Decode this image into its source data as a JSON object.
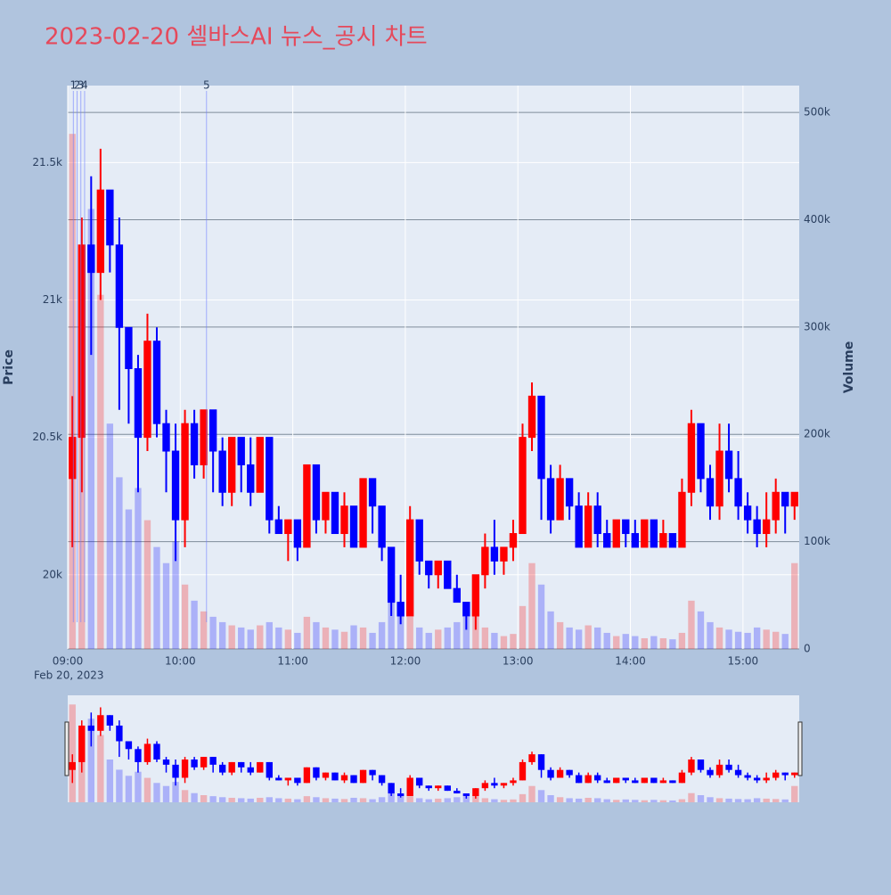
{
  "chart_data": {
    "type": "candlestick",
    "title": "2023-02-20 셀바스AI 뉴스_공시 차트",
    "y_title": "Price",
    "y2_title": "Volume",
    "x_date_label": "Feb 20, 2023",
    "increasing_color": "#ff0000",
    "decreasing_color": "#0000ff",
    "grid": true,
    "x": [
      "2023-02-20 09:00",
      "2023-02-20 09:05",
      "2023-02-20 09:10",
      "2023-02-20 09:15",
      "2023-02-20 09:20",
      "2023-02-20 09:25",
      "2023-02-20 09:30",
      "2023-02-20 09:35",
      "2023-02-20 09:40",
      "2023-02-20 09:45",
      "2023-02-20 09:50",
      "2023-02-20 09:55",
      "2023-02-20 10:00",
      "2023-02-20 10:05",
      "2023-02-20 10:10",
      "2023-02-20 10:15",
      "2023-02-20 10:20",
      "2023-02-20 10:25",
      "2023-02-20 10:30",
      "2023-02-20 10:35",
      "2023-02-20 10:40",
      "2023-02-20 10:45",
      "2023-02-20 10:50",
      "2023-02-20 10:55",
      "2023-02-20 11:00",
      "2023-02-20 11:05",
      "2023-02-20 11:10",
      "2023-02-20 11:15",
      "2023-02-20 11:20",
      "2023-02-20 11:25",
      "2023-02-20 11:30",
      "2023-02-20 11:35",
      "2023-02-20 11:40",
      "2023-02-20 11:45",
      "2023-02-20 11:50",
      "2023-02-20 11:55",
      "2023-02-20 12:00",
      "2023-02-20 12:05",
      "2023-02-20 12:10",
      "2023-02-20 12:15",
      "2023-02-20 12:20",
      "2023-02-20 12:25",
      "2023-02-20 12:30",
      "2023-02-20 12:35",
      "2023-02-20 12:40",
      "2023-02-20 12:45",
      "2023-02-20 12:50",
      "2023-02-20 12:55",
      "2023-02-20 13:00",
      "2023-02-20 13:05",
      "2023-02-20 13:10",
      "2023-02-20 13:15",
      "2023-02-20 13:20",
      "2023-02-20 13:25",
      "2023-02-20 13:30",
      "2023-02-20 13:35",
      "2023-02-20 13:40",
      "2023-02-20 13:45",
      "2023-02-20 13:50",
      "2023-02-20 13:55",
      "2023-02-20 14:00",
      "2023-02-20 14:05",
      "2023-02-20 14:10",
      "2023-02-20 14:15",
      "2023-02-20 14:20",
      "2023-02-20 14:25",
      "2023-02-20 14:30",
      "2023-02-20 14:35",
      "2023-02-20 14:40",
      "2023-02-20 14:45",
      "2023-02-20 14:50",
      "2023-02-20 14:55",
      "2023-02-20 15:00",
      "2023-02-20 15:05",
      "2023-02-20 15:10",
      "2023-02-20 15:15",
      "2023-02-20 15:20",
      "2023-02-20 15:25"
    ],
    "open": [
      20350,
      20500,
      21200,
      21100,
      21400,
      21200,
      20900,
      20750,
      20500,
      20850,
      20550,
      20450,
      20200,
      20550,
      20400,
      20600,
      20450,
      20300,
      20500,
      20400,
      20300,
      20500,
      20200,
      20150,
      20200,
      20100,
      20400,
      20200,
      20300,
      20150,
      20250,
      20100,
      20350,
      20250,
      20100,
      19900,
      19850,
      20200,
      20050,
      20000,
      20050,
      19950,
      19900,
      19850,
      20000,
      20100,
      20050,
      20100,
      20150,
      20500,
      20650,
      20350,
      20200,
      20350,
      20250,
      20100,
      20250,
      20150,
      20100,
      20200,
      20150,
      20100,
      20200,
      20100,
      20150,
      20100,
      20300,
      20550,
      20350,
      20250,
      20450,
      20350,
      20250,
      20200,
      20150,
      20200,
      20300,
      20250
    ],
    "high": [
      20650,
      21300,
      21450,
      21550,
      21400,
      21300,
      20900,
      20800,
      20950,
      20900,
      20600,
      20550,
      20600,
      20600,
      20600,
      20600,
      20500,
      20500,
      20500,
      20500,
      20500,
      20500,
      20250,
      20200,
      20200,
      20400,
      20400,
      20300,
      20300,
      20300,
      20250,
      20350,
      20350,
      20250,
      20100,
      20000,
      20250,
      20200,
      20050,
      20050,
      20050,
      20000,
      19900,
      20000,
      20150,
      20200,
      20100,
      20200,
      20550,
      20700,
      20650,
      20400,
      20400,
      20350,
      20300,
      20300,
      20300,
      20200,
      20200,
      20200,
      20200,
      20200,
      20200,
      20200,
      20150,
      20350,
      20600,
      20550,
      20400,
      20550,
      20550,
      20450,
      20300,
      20250,
      20300,
      20350,
      20300,
      20300
    ],
    "low": [
      20100,
      20300,
      20800,
      21000,
      21100,
      20600,
      20550,
      20300,
      20450,
      20500,
      20300,
      20050,
      20100,
      20350,
      20350,
      20300,
      20250,
      20250,
      20300,
      20250,
      20300,
      20150,
      20150,
      20050,
      20050,
      20100,
      20150,
      20150,
      20150,
      20100,
      20100,
      20100,
      20150,
      20050,
      19850,
      19820,
      19850,
      20000,
      19950,
      19950,
      19950,
      19900,
      19800,
      19800,
      19950,
      20000,
      20000,
      20050,
      20150,
      20450,
      20200,
      20150,
      20200,
      20200,
      20100,
      20100,
      20100,
      20100,
      20100,
      20100,
      20100,
      20100,
      20100,
      20100,
      20100,
      20100,
      20250,
      20300,
      20200,
      20200,
      20300,
      20200,
      20150,
      20100,
      20100,
      20150,
      20150,
      20200
    ],
    "close": [
      20500,
      21200,
      21100,
      21400,
      21200,
      20900,
      20750,
      20500,
      20850,
      20550,
      20450,
      20200,
      20550,
      20400,
      20600,
      20450,
      20300,
      20500,
      20400,
      20300,
      20500,
      20200,
      20150,
      20200,
      20100,
      20400,
      20200,
      20300,
      20150,
      20250,
      20100,
      20350,
      20250,
      20100,
      19900,
      19850,
      20200,
      20050,
      20000,
      20050,
      19950,
      19900,
      19850,
      20000,
      20100,
      20050,
      20100,
      20150,
      20500,
      20650,
      20350,
      20200,
      20350,
      20250,
      20100,
      20250,
      20150,
      20100,
      20200,
      20150,
      20100,
      20200,
      20100,
      20150,
      20100,
      20300,
      20550,
      20350,
      20250,
      20450,
      20350,
      20250,
      20200,
      20150,
      20200,
      20300,
      20250,
      20300
    ],
    "volume": [
      480000,
      360000,
      410000,
      330000,
      210000,
      160000,
      130000,
      150000,
      120000,
      95000,
      80000,
      100000,
      60000,
      45000,
      35000,
      30000,
      25000,
      22000,
      20000,
      18000,
      22000,
      25000,
      20000,
      18000,
      15000,
      30000,
      25000,
      20000,
      18000,
      16000,
      22000,
      20000,
      15000,
      25000,
      45000,
      40000,
      30000,
      20000,
      15000,
      18000,
      20000,
      25000,
      30000,
      35000,
      20000,
      15000,
      12000,
      14000,
      40000,
      80000,
      60000,
      35000,
      25000,
      20000,
      18000,
      22000,
      20000,
      15000,
      12000,
      14000,
      12000,
      10000,
      12000,
      10000,
      9000,
      15000,
      45000,
      35000,
      25000,
      20000,
      18000,
      16000,
      15000,
      20000,
      18000,
      16000,
      14000,
      80000
    ],
    "xlim": [
      "2023-02-20 09:00",
      "2023-02-20 15:30"
    ],
    "xticks": [
      {
        "value": "2023-02-20 09:00",
        "label": "09:00"
      },
      {
        "value": "2023-02-20 10:00",
        "label": "10:00"
      },
      {
        "value": "2023-02-20 11:00",
        "label": "11:00"
      },
      {
        "value": "2023-02-20 12:00",
        "label": "12:00"
      },
      {
        "value": "2023-02-20 13:00",
        "label": "13:00"
      },
      {
        "value": "2023-02-20 14:00",
        "label": "14:00"
      },
      {
        "value": "2023-02-20 15:00",
        "label": "15:00"
      }
    ],
    "ylim": [
      19730,
      21780
    ],
    "yticks": [
      {
        "value": 20000,
        "label": "20k"
      },
      {
        "value": 20500,
        "label": "20.5k"
      },
      {
        "value": 21000,
        "label": "21k"
      },
      {
        "value": 21500,
        "label": "21.5k"
      }
    ],
    "y2lim": [
      0,
      525000
    ],
    "y2ticks": [
      0,
      {
        "value": 100000,
        "label": "100k"
      },
      {
        "value": 200000,
        "label": "200k"
      },
      {
        "value": 300000,
        "label": "300k"
      },
      {
        "value": 400000,
        "label": "400k"
      },
      {
        "value": 500000,
        "label": "500k"
      }
    ],
    "annotations": [
      {
        "x": "2023-02-20 09:03",
        "text": "1"
      },
      {
        "x": "2023-02-20 09:05",
        "text": "2"
      },
      {
        "x": "2023-02-20 09:07",
        "text": "3"
      },
      {
        "x": "2023-02-20 09:09",
        "text": "4"
      },
      {
        "x": "2023-02-20 10:14",
        "text": "5"
      }
    ]
  }
}
